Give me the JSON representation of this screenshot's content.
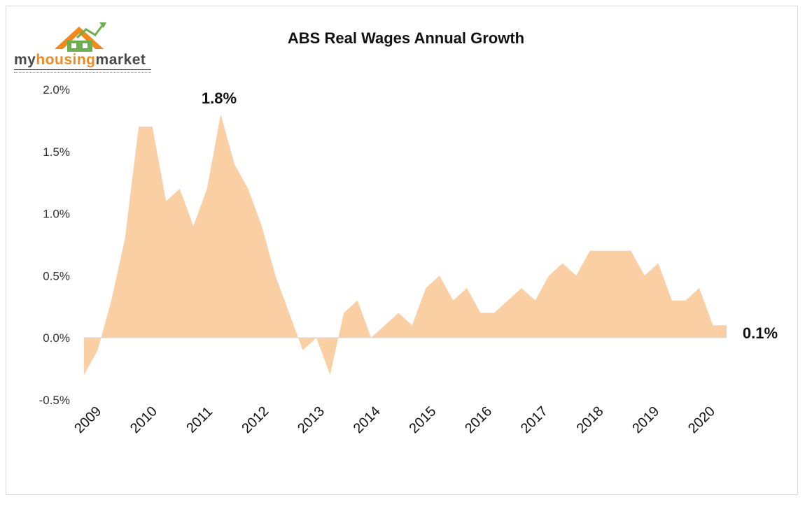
{
  "logo": {
    "name_part1": "my",
    "name_part2": "housing",
    "name_part3": "market",
    "icon": "house-roof-icon",
    "colors": {
      "roof": "#f08a1e",
      "house": "#6ab04c",
      "text": "#4a4a4a"
    }
  },
  "chart_data": {
    "type": "area",
    "title": "ABS Real Wages Annual Growth",
    "xlabel": "",
    "ylabel": "",
    "ylim": [
      -0.5,
      2.0
    ],
    "yticks": [
      "2.0%",
      "1.5%",
      "1.0%",
      "0.5%",
      "0.0%",
      "-0.5%"
    ],
    "ytick_values": [
      2.0,
      1.5,
      1.0,
      0.5,
      0.0,
      -0.5
    ],
    "xtick_labels": [
      "2009",
      "2010",
      "2011",
      "2012",
      "2013",
      "2014",
      "2015",
      "2016",
      "2017",
      "2018",
      "2019",
      "2020"
    ],
    "grid": false,
    "legend": "none",
    "fill_color": "#f9cfa3",
    "series": [
      {
        "values": [
          -0.3,
          -0.1,
          0.3,
          0.8,
          1.7,
          1.7,
          1.1,
          1.2,
          0.9,
          1.2,
          1.8,
          1.4,
          1.2,
          0.9,
          0.5,
          0.2,
          -0.1,
          0.0,
          -0.3,
          0.2,
          0.3,
          0.0,
          0.1,
          0.2,
          0.1,
          0.4,
          0.5,
          0.3,
          0.4,
          0.2,
          0.2,
          0.3,
          0.4,
          0.3,
          0.5,
          0.6,
          0.5,
          0.7,
          0.7,
          0.7,
          0.7,
          0.5,
          0.6,
          0.3,
          0.3,
          0.4,
          0.1,
          0.1
        ]
      }
    ],
    "annotations": [
      {
        "text": "1.8%"
      },
      {
        "text": "0.1%"
      }
    ]
  }
}
